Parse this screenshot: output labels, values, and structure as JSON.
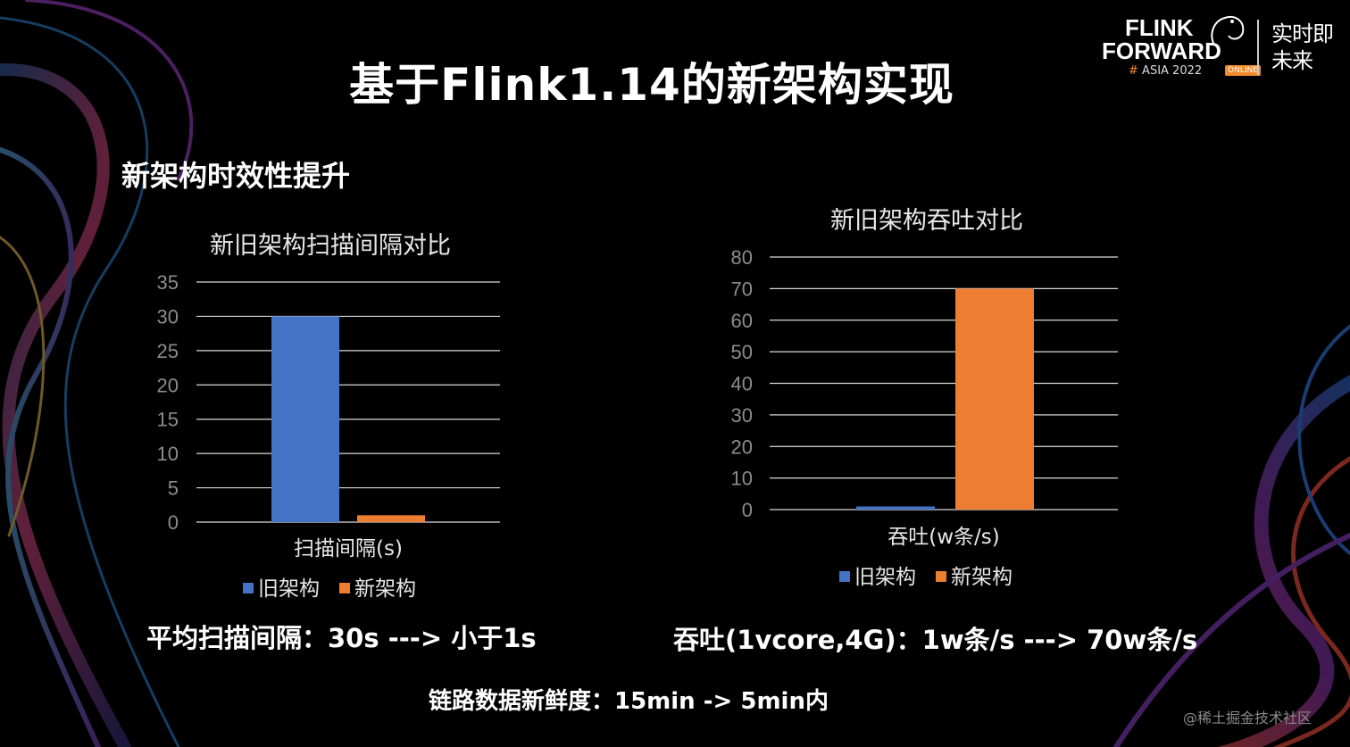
{
  "slide": {
    "title": "基于Flink1.14的新架构实现",
    "subtitle": "新架构时效性提升",
    "summary_scan": "平均扫描间隔：30s ---> 小于1s",
    "summary_throughput": "吞吐(1vcore,4G)：1w条/s ---> 70w条/s",
    "summary_freshness": "链路数据新鲜度：15min -> 5min内",
    "watermark": "@稀土掘金技术社区"
  },
  "logo": {
    "line1": "FLINK",
    "line2": "FORWARD",
    "hash": "#",
    "event": "ASIA 2022",
    "badge": "ONLINE",
    "cn_line1": "实时即",
    "cn_line2": "未来"
  },
  "colors": {
    "old_series": "#4472c4",
    "new_series": "#ed7d31",
    "axis_text": "#8c8c8c",
    "gridline": "#d9d9d9",
    "accent": "#f08a2a"
  },
  "chart_data": [
    {
      "type": "bar",
      "title": "新旧架构扫描间隔对比",
      "categories": [
        "扫描间隔(s)"
      ],
      "series": [
        {
          "name": "旧架构",
          "values": [
            30
          ]
        },
        {
          "name": "新架构",
          "values": [
            1
          ]
        }
      ],
      "xlabel": "",
      "ylabel": "",
      "ylim": [
        0,
        35
      ],
      "yticks": [
        0,
        5,
        10,
        15,
        20,
        25,
        30,
        35
      ],
      "grid": true,
      "legend": "bottom"
    },
    {
      "type": "bar",
      "title": "新旧架构吞吐对比",
      "categories": [
        "吞吐(w条/s)"
      ],
      "series": [
        {
          "name": "旧架构",
          "values": [
            1
          ]
        },
        {
          "name": "新架构",
          "values": [
            70
          ]
        }
      ],
      "xlabel": "",
      "ylabel": "",
      "ylim": [
        0,
        80
      ],
      "yticks": [
        0,
        10,
        20,
        30,
        40,
        50,
        60,
        70,
        80
      ],
      "grid": true,
      "legend": "bottom"
    }
  ]
}
